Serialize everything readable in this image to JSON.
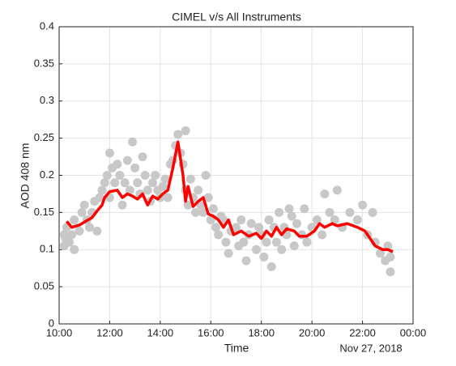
{
  "chart_data": {
    "type": "scatter_line",
    "title": "CIMEL v/s All Instruments",
    "x_label": "Time",
    "y_label": "AOD 408 nm",
    "annotation": "Nov 27, 2018",
    "xlim": [
      10,
      24
    ],
    "xticks": [
      {
        "value": 10,
        "label": "10:00"
      },
      {
        "value": 12,
        "label": "12:00"
      },
      {
        "value": 14,
        "label": "14:00"
      },
      {
        "value": 16,
        "label": "16:00"
      },
      {
        "value": 18,
        "label": "18:00"
      },
      {
        "value": 20,
        "label": "20:00"
      },
      {
        "value": 22,
        "label": "22:00"
      },
      {
        "value": 24,
        "label": "00:00"
      }
    ],
    "ylim": [
      0,
      0.4
    ],
    "yticks": [
      0,
      0.05,
      0.1,
      0.15,
      0.2,
      0.25,
      0.3,
      0.35,
      0.4
    ],
    "grid": true,
    "series": [
      {
        "kind": "scatter",
        "color": "#c8c8c8",
        "x": [
          10.2,
          10.2,
          10.25,
          10.3,
          10.4,
          10.5,
          10.6,
          10.6,
          10.8,
          10.9,
          11.0,
          11.1,
          11.2,
          11.3,
          11.4,
          11.5,
          11.6,
          11.7,
          11.8,
          11.9,
          12.0,
          12.0,
          12.1,
          12.2,
          12.3,
          12.4,
          12.5,
          12.6,
          12.7,
          12.8,
          12.9,
          13.0,
          13.1,
          13.2,
          13.3,
          13.4,
          13.5,
          13.6,
          13.7,
          13.8,
          13.9,
          14.0,
          14.1,
          14.2,
          14.3,
          14.4,
          14.5,
          14.6,
          14.7,
          14.8,
          14.9,
          15.0,
          15.0,
          15.1,
          15.2,
          15.3,
          15.4,
          15.5,
          15.6,
          15.7,
          15.8,
          15.9,
          16.0,
          16.1,
          16.2,
          16.3,
          16.4,
          16.5,
          16.6,
          16.7,
          16.8,
          17.0,
          17.1,
          17.2,
          17.3,
          17.4,
          17.5,
          17.6,
          17.8,
          17.9,
          18.0,
          18.1,
          18.2,
          18.3,
          18.4,
          18.5,
          18.6,
          18.7,
          18.8,
          18.9,
          19.0,
          19.1,
          19.2,
          19.3,
          19.4,
          19.6,
          19.7,
          19.8,
          20.0,
          20.2,
          20.4,
          20.5,
          20.7,
          20.9,
          21.0,
          21.2,
          21.5,
          21.8,
          22.0,
          22.2,
          22.4,
          22.5,
          22.7,
          22.9,
          23.0,
          23.1,
          23.1
        ],
        "values": [
          0.12,
          0.105,
          0.115,
          0.13,
          0.11,
          0.12,
          0.1,
          0.14,
          0.125,
          0.15,
          0.16,
          0.14,
          0.13,
          0.15,
          0.165,
          0.125,
          0.17,
          0.18,
          0.19,
          0.2,
          0.23,
          0.17,
          0.21,
          0.19,
          0.215,
          0.2,
          0.16,
          0.19,
          0.22,
          0.18,
          0.245,
          0.21,
          0.19,
          0.175,
          0.225,
          0.2,
          0.18,
          0.165,
          0.19,
          0.2,
          0.18,
          0.17,
          0.185,
          0.195,
          0.17,
          0.215,
          0.22,
          0.24,
          0.255,
          0.23,
          0.215,
          0.26,
          0.18,
          0.16,
          0.195,
          0.17,
          0.15,
          0.18,
          0.16,
          0.15,
          0.2,
          0.17,
          0.14,
          0.155,
          0.13,
          0.12,
          0.145,
          0.14,
          0.11,
          0.095,
          0.125,
          0.13,
          0.105,
          0.14,
          0.11,
          0.085,
          0.12,
          0.135,
          0.1,
          0.13,
          0.12,
          0.09,
          0.11,
          0.14,
          0.077,
          0.13,
          0.11,
          0.15,
          0.1,
          0.13,
          0.12,
          0.155,
          0.145,
          0.105,
          0.135,
          0.12,
          0.155,
          0.11,
          0.13,
          0.14,
          0.12,
          0.175,
          0.15,
          0.14,
          0.18,
          0.13,
          0.15,
          0.14,
          0.16,
          0.12,
          0.15,
          0.11,
          0.095,
          0.085,
          0.105,
          0.07,
          0.09
        ]
      },
      {
        "kind": "line",
        "color": "#ff0000",
        "x": [
          10.3,
          10.5,
          10.8,
          11.0,
          11.3,
          11.5,
          11.7,
          11.8,
          12.0,
          12.3,
          12.5,
          12.7,
          12.9,
          13.1,
          13.3,
          13.5,
          13.7,
          13.9,
          14.1,
          14.3,
          14.5,
          14.7,
          14.9,
          15.0,
          15.1,
          15.3,
          15.5,
          15.7,
          15.9,
          16.1,
          16.3,
          16.5,
          16.7,
          16.9,
          17.2,
          17.5,
          17.8,
          18.0,
          18.2,
          18.4,
          18.6,
          18.8,
          19.0,
          19.3,
          19.5,
          19.8,
          20.1,
          20.3,
          20.5,
          20.8,
          21.0,
          21.4,
          21.8,
          22.1,
          22.3,
          22.5,
          22.8,
          23.0,
          23.2
        ],
        "values": [
          0.138,
          0.13,
          0.133,
          0.137,
          0.143,
          0.152,
          0.16,
          0.17,
          0.178,
          0.18,
          0.17,
          0.175,
          0.172,
          0.168,
          0.175,
          0.16,
          0.172,
          0.168,
          0.175,
          0.18,
          0.21,
          0.245,
          0.2,
          0.165,
          0.185,
          0.158,
          0.165,
          0.17,
          0.148,
          0.145,
          0.14,
          0.13,
          0.14,
          0.12,
          0.125,
          0.118,
          0.122,
          0.115,
          0.125,
          0.118,
          0.13,
          0.12,
          0.128,
          0.125,
          0.118,
          0.118,
          0.125,
          0.135,
          0.13,
          0.135,
          0.132,
          0.135,
          0.13,
          0.125,
          0.115,
          0.105,
          0.1,
          0.1,
          0.097
        ]
      }
    ]
  }
}
